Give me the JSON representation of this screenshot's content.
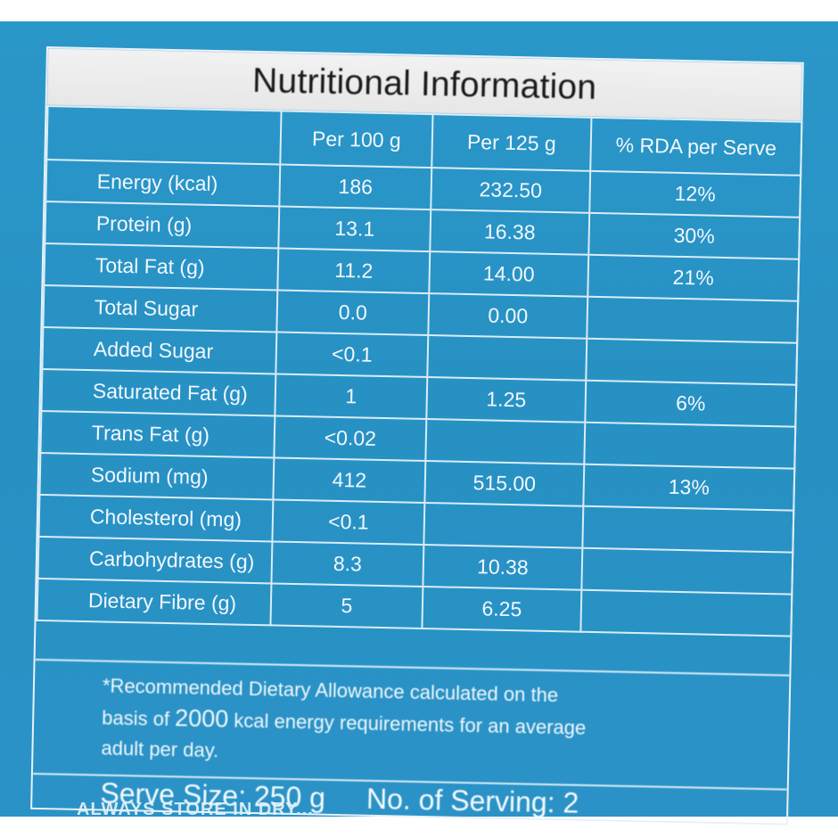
{
  "header_text": "",
  "title": "Nutritional Information",
  "columns": [
    "",
    "Per 100 g",
    "Per 125 g",
    "% RDA per Serve"
  ],
  "rows": [
    {
      "name": "Energy (kcal)",
      "per100": "186",
      "per125": "232.50",
      "rda": "12%"
    },
    {
      "name": "Protein (g)",
      "per100": "13.1",
      "per125": "16.38",
      "rda": "30%"
    },
    {
      "name": "Total Fat (g)",
      "per100": "11.2",
      "per125": "14.00",
      "rda": "21%"
    },
    {
      "name": "Total Sugar",
      "per100": "0.0",
      "per125": "0.00",
      "rda": ""
    },
    {
      "name": "Added Sugar",
      "per100": "<0.1",
      "per125": "",
      "rda": ""
    },
    {
      "name": "Saturated Fat (g)",
      "per100": "1",
      "per125": "1.25",
      "rda": "6%"
    },
    {
      "name": "Trans Fat (g)",
      "per100": "<0.02",
      "per125": "",
      "rda": ""
    },
    {
      "name": "Sodium (mg)",
      "per100": "412",
      "per125": "515.00",
      "rda": "13%"
    },
    {
      "name": "Cholesterol (mg)",
      "per100": "<0.1",
      "per125": "",
      "rda": ""
    },
    {
      "name": "Carbohydrates (g)",
      "per100": "8.3",
      "per125": "10.38",
      "rda": ""
    },
    {
      "name": "Dietary Fibre (g)",
      "per100": "5",
      "per125": "6.25",
      "rda": ""
    }
  ],
  "footnote": {
    "line1": "*Recommended Dietary Allowance calculated on the",
    "line2_prefix": "basis of ",
    "line2_big": "2000",
    "line2_suffix": " kcal energy requirements for an average",
    "line3": "adult per day."
  },
  "serve": {
    "size": "Serve Size: 250 g",
    "count": "No. of Serving: 2"
  },
  "bottom_text": "ALWAYS STORE IN DRY..."
}
